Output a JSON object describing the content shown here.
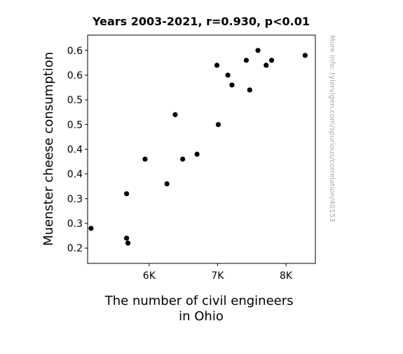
{
  "chart_data": {
    "type": "scatter",
    "title": "Years 2003-2021, r=0.930, p<0.01",
    "xlabel_lines": [
      "The number of civil engineers",
      "in Ohio"
    ],
    "ylabel": "Muenster cheese consumption",
    "side_note": "More info: tylervigen.com/spurious/correlation/40153",
    "xlim": [
      5100,
      8430
    ],
    "ylim": [
      0.169,
      0.631
    ],
    "x_ticks": [
      {
        "value": 6000,
        "label": "6K"
      },
      {
        "value": 7000,
        "label": "7K"
      },
      {
        "value": 8000,
        "label": "8K"
      }
    ],
    "y_ticks": [
      {
        "value": 0.2,
        "label": "0.2"
      },
      {
        "value": 0.25,
        "label": "0.3"
      },
      {
        "value": 0.3,
        "label": "0.3"
      },
      {
        "value": 0.35,
        "label": "0.4"
      },
      {
        "value": 0.4,
        "label": "0.4"
      },
      {
        "value": 0.45,
        "label": "0.5"
      },
      {
        "value": 0.5,
        "label": "0.5"
      },
      {
        "value": 0.55,
        "label": "0.6"
      },
      {
        "value": 0.6,
        "label": "0.6"
      }
    ],
    "points": [
      {
        "x": 5150,
        "y": 0.24
      },
      {
        "x": 5670,
        "y": 0.31
      },
      {
        "x": 5670,
        "y": 0.22
      },
      {
        "x": 5690,
        "y": 0.21
      },
      {
        "x": 5940,
        "y": 0.38
      },
      {
        "x": 6260,
        "y": 0.33
      },
      {
        "x": 6380,
        "y": 0.47
      },
      {
        "x": 6490,
        "y": 0.38
      },
      {
        "x": 6700,
        "y": 0.39
      },
      {
        "x": 6990,
        "y": 0.57
      },
      {
        "x": 7010,
        "y": 0.45
      },
      {
        "x": 7150,
        "y": 0.55
      },
      {
        "x": 7210,
        "y": 0.53
      },
      {
        "x": 7420,
        "y": 0.58
      },
      {
        "x": 7470,
        "y": 0.52
      },
      {
        "x": 7590,
        "y": 0.6
      },
      {
        "x": 7710,
        "y": 0.57
      },
      {
        "x": 7790,
        "y": 0.58
      },
      {
        "x": 8280,
        "y": 0.59
      }
    ],
    "marker_color": "#000000",
    "grid": false
  }
}
